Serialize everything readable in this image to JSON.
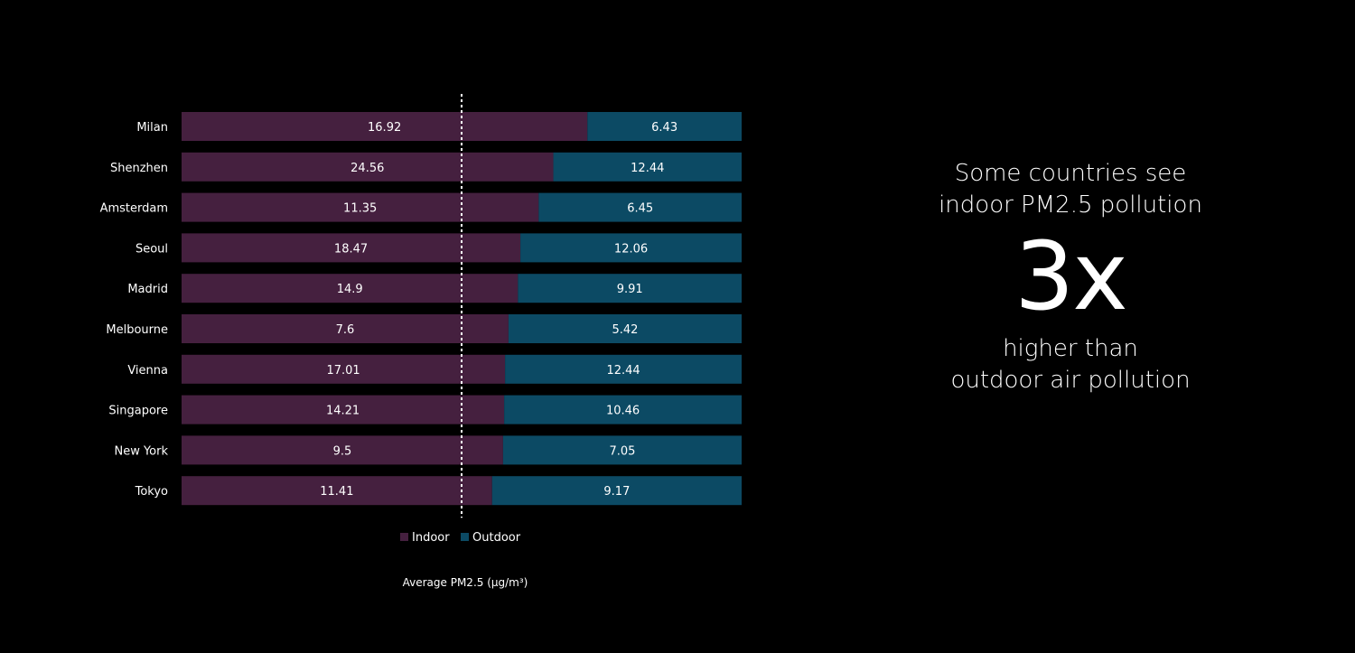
{
  "chart_data": {
    "type": "bar",
    "stacked": true,
    "orientation": "horizontal",
    "categories": [
      "Milan",
      "Shenzhen",
      "Amsterdam",
      "Seoul",
      "Madrid",
      "Melbourne",
      "Vienna",
      "Singapore",
      "New York",
      "Tokyo"
    ],
    "series": [
      {
        "name": "Indoor",
        "color": "#45203f",
        "values": [
          16.92,
          24.56,
          11.35,
          18.47,
          14.9,
          7.6,
          17.01,
          14.21,
          9.5,
          11.41
        ]
      },
      {
        "name": "Outdoor",
        "color": "#0c4a64",
        "values": [
          6.43,
          12.44,
          6.45,
          12.06,
          9.91,
          5.42,
          12.44,
          10.46,
          7.05,
          9.17
        ]
      }
    ],
    "value_labels": {
      "Indoor": [
        "16.92",
        "24.56",
        "11.35",
        "18.47",
        "14.9",
        "7.6",
        "17.01",
        "14.21",
        "9.5",
        "11.41"
      ],
      "Outdoor": [
        "6.43",
        "12.44",
        "6.45",
        "12.06",
        "9.91",
        "5.42",
        "12.44",
        "10.46",
        "7.05",
        "9.17"
      ]
    },
    "normalized_to_total": true,
    "reference_line": 0.5,
    "xlabel": "Average PM2.5 (μg/m³)",
    "ylabel": "",
    "legend": "bottom-center",
    "grid": false
  },
  "callout": {
    "line1": "Some countries see",
    "line2": "indoor PM2.5 pollution",
    "big": "3x",
    "line3": "higher than",
    "line4": "outdoor air pollution"
  },
  "colors": {
    "background": "#000000",
    "indoor": "#45203f",
    "outdoor": "#0c4a64",
    "text": "#ffffff"
  }
}
